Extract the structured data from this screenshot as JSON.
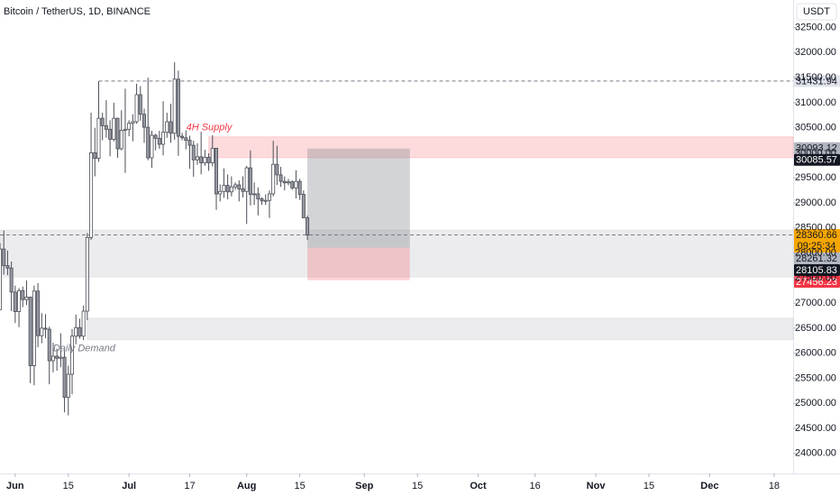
{
  "chart_data": {
    "type": "candlestick",
    "title": "Bitcoin / TetherUS, 1D, BINANCE",
    "currency": "USDT",
    "dates": [
      "May 28",
      "May 29",
      "May 30",
      "May 31",
      "Jun 1",
      "Jun 2",
      "Jun 3",
      "Jun 4",
      "Jun 5",
      "Jun 6",
      "Jun 7",
      "Jun 8",
      "Jun 9",
      "Jun 10",
      "Jun 11",
      "Jun 12",
      "Jun 13",
      "Jun 14",
      "Jun 15",
      "Jun 16",
      "Jun 17",
      "Jun 18",
      "Jun 19",
      "Jun 20",
      "Jun 21",
      "Jun 22",
      "Jun 23",
      "Jun 24",
      "Jun 25",
      "Jun 26",
      "Jun 27",
      "Jun 28",
      "Jun 29",
      "Jun 30",
      "Jul 1",
      "Jul 2",
      "Jul 3",
      "Jul 4",
      "Jul 5",
      "Jul 6",
      "Jul 7",
      "Jul 8",
      "Jul 9",
      "Jul 10",
      "Jul 11",
      "Jul 12",
      "Jul 13",
      "Jul 14",
      "Jul 15",
      "Jul 16",
      "Jul 17",
      "Jul 18",
      "Jul 19",
      "Jul 20",
      "Jul 21",
      "Jul 22",
      "Jul 23",
      "Jul 24",
      "Jul 25",
      "Jul 26",
      "Jul 27",
      "Jul 28",
      "Jul 29",
      "Jul 30",
      "Jul 31",
      "Aug 1",
      "Aug 2",
      "Aug 3",
      "Aug 4",
      "Aug 5",
      "Aug 6",
      "Aug 7",
      "Aug 8",
      "Aug 9",
      "Aug 10",
      "Aug 11",
      "Aug 12",
      "Aug 13",
      "Aug 14",
      "Aug 15",
      "Aug 16",
      "Aug 17"
    ],
    "ohlc": [
      [
        26870,
        28200,
        26870,
        28080
      ],
      [
        28080,
        28450,
        27570,
        27750
      ],
      [
        27750,
        28050,
        27560,
        27700
      ],
      [
        27700,
        27830,
        26840,
        27220
      ],
      [
        27220,
        27350,
        26600,
        26830
      ],
      [
        26830,
        27300,
        26520,
        27250
      ],
      [
        27250,
        27330,
        26920,
        27070
      ],
      [
        27070,
        27450,
        26960,
        27120
      ],
      [
        27120,
        27130,
        25400,
        25750
      ],
      [
        25750,
        27350,
        25360,
        27240
      ],
      [
        27240,
        27400,
        26120,
        26350
      ],
      [
        26350,
        26800,
        26200,
        26500
      ],
      [
        26500,
        26780,
        26300,
        26480
      ],
      [
        26480,
        26530,
        25380,
        25850
      ],
      [
        25850,
        26210,
        25620,
        25940
      ],
      [
        25940,
        26090,
        25650,
        25900
      ],
      [
        25900,
        26400,
        25720,
        25920
      ],
      [
        25920,
        26080,
        24820,
        25120
      ],
      [
        25120,
        25750,
        24760,
        25580
      ],
      [
        25580,
        26480,
        25180,
        26340
      ],
      [
        26340,
        26770,
        26180,
        26510
      ],
      [
        26510,
        26690,
        26290,
        26340
      ],
      [
        26340,
        26950,
        26260,
        26840
      ],
      [
        26840,
        28400,
        26660,
        28310
      ],
      [
        28310,
        30800,
        28260,
        30000
      ],
      [
        30000,
        30500,
        29530,
        29890
      ],
      [
        29890,
        31430,
        29820,
        30690
      ],
      [
        30690,
        30800,
        30250,
        30540
      ],
      [
        30540,
        31050,
        30300,
        30470
      ],
      [
        30470,
        30650,
        29930,
        30270
      ],
      [
        30270,
        31000,
        30230,
        30690
      ],
      [
        30690,
        30700,
        29900,
        30080
      ],
      [
        30080,
        30850,
        30050,
        30450
      ],
      [
        30450,
        31280,
        29600,
        30470
      ],
      [
        30470,
        30650,
        30330,
        30590
      ],
      [
        30590,
        30770,
        30230,
        30620
      ],
      [
        30620,
        31380,
        30580,
        31160
      ],
      [
        31160,
        31330,
        30640,
        30770
      ],
      [
        30770,
        30880,
        30200,
        30510
      ],
      [
        30510,
        31500,
        29850,
        29900
      ],
      [
        29900,
        30440,
        29700,
        30350
      ],
      [
        30350,
        30380,
        30050,
        30290
      ],
      [
        30290,
        30440,
        30080,
        30170
      ],
      [
        30170,
        31030,
        29950,
        30410
      ],
      [
        30410,
        30800,
        30300,
        30620
      ],
      [
        30620,
        30980,
        30200,
        30390
      ],
      [
        30390,
        31810,
        30260,
        31470
      ],
      [
        31470,
        31640,
        29940,
        30330
      ],
      [
        30330,
        30400,
        30250,
        30300
      ],
      [
        30300,
        30450,
        30070,
        30250
      ],
      [
        30250,
        30340,
        29680,
        30150
      ],
      [
        30150,
        30240,
        29520,
        29860
      ],
      [
        29860,
        30190,
        29760,
        29920
      ],
      [
        29920,
        30420,
        29570,
        29800
      ],
      [
        29800,
        30060,
        29740,
        29910
      ],
      [
        29910,
        29990,
        29640,
        29800
      ],
      [
        29800,
        30350,
        29730,
        30090
      ],
      [
        30090,
        30100,
        28860,
        29180
      ],
      [
        29180,
        29370,
        29030,
        29230
      ],
      [
        29230,
        29690,
        29100,
        29350
      ],
      [
        29350,
        29570,
        29070,
        29220
      ],
      [
        29220,
        29530,
        29130,
        29320
      ],
      [
        29320,
        29410,
        29260,
        29360
      ],
      [
        29360,
        29450,
        29030,
        29280
      ],
      [
        29280,
        29530,
        29110,
        29230
      ],
      [
        29230,
        29740,
        28580,
        29700
      ],
      [
        29700,
        30050,
        28950,
        29170
      ],
      [
        29170,
        29410,
        28960,
        29180
      ],
      [
        29180,
        29310,
        28750,
        29080
      ],
      [
        29080,
        29110,
        28960,
        29040
      ],
      [
        29040,
        29170,
        28960,
        29050
      ],
      [
        29050,
        29250,
        28700,
        29180
      ],
      [
        29180,
        30240,
        29130,
        29770
      ],
      [
        29770,
        30140,
        29360,
        29560
      ],
      [
        29560,
        29720,
        29320,
        29430
      ],
      [
        29430,
        29530,
        29250,
        29400
      ],
      [
        29400,
        29480,
        29350,
        29420
      ],
      [
        29420,
        29450,
        29260,
        29300
      ],
      [
        29300,
        29650,
        29090,
        29430
      ],
      [
        29430,
        29480,
        29060,
        29170
      ],
      [
        29170,
        29250,
        28700,
        28700
      ],
      [
        28700,
        28750,
        28260,
        28360
      ]
    ],
    "xlim": [
      "May 28",
      "Dec 23"
    ],
    "xticks": [
      {
        "value": "Jun 1",
        "label": "Jun"
      },
      {
        "value": "Jun 15",
        "label": "15"
      },
      {
        "value": "Jul 1",
        "label": "Jul"
      },
      {
        "value": "Jul 17",
        "label": "17"
      },
      {
        "value": "Aug 1",
        "label": "Aug"
      },
      {
        "value": "Aug 15",
        "label": "15"
      },
      {
        "value": "Sep 1",
        "label": "Sep"
      },
      {
        "value": "Sep 15",
        "label": "15"
      },
      {
        "value": "Oct 1",
        "label": "Oct"
      },
      {
        "value": "Oct 16",
        "label": "16"
      },
      {
        "value": "Nov 1",
        "label": "Nov"
      },
      {
        "value": "Nov 15",
        "label": "15"
      },
      {
        "value": "Dec 1",
        "label": "Dec"
      },
      {
        "value": "Dec 18",
        "label": "18"
      }
    ],
    "ylim": [
      23600,
      33050
    ],
    "yticks": [
      {
        "value": 24000,
        "label": "24000.00"
      },
      {
        "value": 24500,
        "label": "24500.00"
      },
      {
        "value": 25000,
        "label": "25000.00"
      },
      {
        "value": 25500,
        "label": "25500.00"
      },
      {
        "value": 26000,
        "label": "26000.00"
      },
      {
        "value": 26500,
        "label": "26500.00"
      },
      {
        "value": 27000,
        "label": "27000.00"
      },
      {
        "value": 27500,
        "label": "27500.00"
      },
      {
        "value": 28000,
        "label": "28000.00"
      },
      {
        "value": 28500,
        "label": "28500.00"
      },
      {
        "value": 29000,
        "label": "29000.00"
      },
      {
        "value": 29500,
        "label": "29500.00"
      },
      {
        "value": 30000,
        "label": "30000.00"
      },
      {
        "value": 30500,
        "label": "30500.00"
      },
      {
        "value": 31000,
        "label": "31000.00"
      },
      {
        "value": 31500,
        "label": "31500.00"
      },
      {
        "value": 32000,
        "label": "32000.00"
      },
      {
        "value": 32500,
        "label": "32500.00"
      }
    ],
    "grid": false,
    "zones": [
      {
        "name": "4H Supply",
        "top": 30320,
        "bottom": 29900,
        "start": "Jul 22",
        "color": "#f23645"
      },
      {
        "top": 28460,
        "bottom": 27520,
        "start": "May 28",
        "color": "#9598a1"
      },
      {
        "name": "Daily Demand",
        "top": 26700,
        "bottom": 26270,
        "start": "Jun 20",
        "color": "#9598a1"
      }
    ],
    "lines": [
      {
        "value": 31431.94,
        "start": "Jun 23"
      }
    ],
    "last_price": {
      "value": 28360.66,
      "countdown": "09:25:34"
    },
    "position": {
      "entry": 28105.83,
      "target": 30085.57,
      "stop": 27456.23,
      "start": "Aug 17",
      "end": "Sep 13"
    },
    "axis_labels": [
      {
        "value": 31431.94,
        "style": "light"
      },
      {
        "value": 30093.12,
        "style": "gray"
      },
      {
        "value": 30085.57,
        "style": "dark"
      },
      {
        "value": 28360.66,
        "style": "orange"
      },
      {
        "value": 28261.32,
        "style": "gray"
      },
      {
        "value": 28105.83,
        "style": "dark"
      },
      {
        "value": 27456.23,
        "style": "red"
      }
    ]
  }
}
